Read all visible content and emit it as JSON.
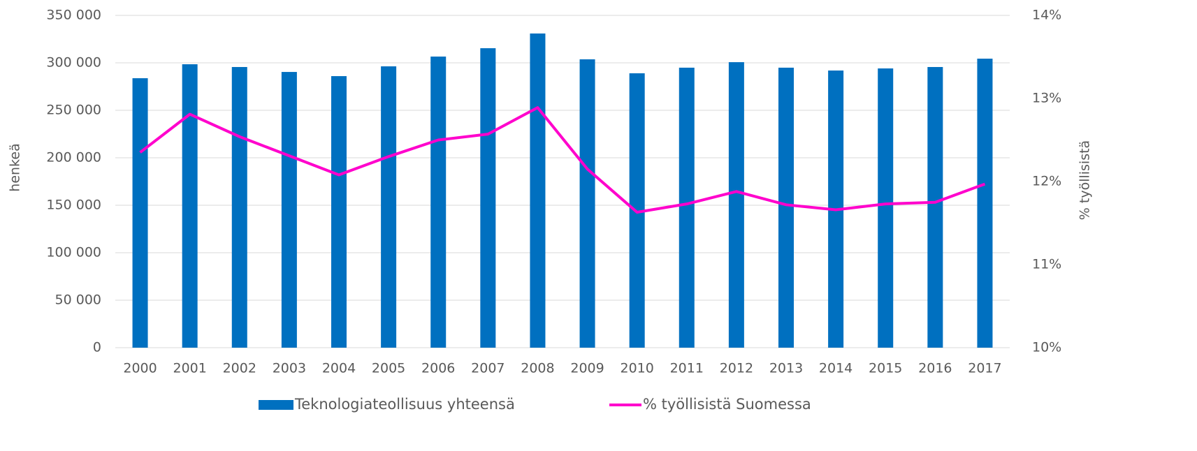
{
  "chart_data": {
    "type": "bar",
    "categories": [
      "2000",
      "2001",
      "2002",
      "2003",
      "2004",
      "2005",
      "2006",
      "2007",
      "2008",
      "2009",
      "2010",
      "2011",
      "2012",
      "2013",
      "2014",
      "2015",
      "2016",
      "2017"
    ],
    "series": [
      {
        "name": "Teknologiateollisuus yhteensä",
        "type": "bar",
        "color": "#0070c0",
        "values": [
          283800,
          298500,
          295600,
          290400,
          286000,
          296300,
          306600,
          315400,
          330900,
          303700,
          289000,
          294900,
          300700,
          294900,
          291900,
          294100,
          295600,
          304400
        ]
      },
      {
        "name": "% työllisistä Suomessa",
        "type": "line",
        "axis": "y2",
        "color": "#ff00cc",
        "values": [
          12.35,
          12.81,
          12.54,
          12.31,
          12.08,
          12.3,
          12.5,
          12.57,
          12.89,
          12.15,
          11.63,
          11.73,
          11.88,
          11.72,
          11.66,
          11.73,
          11.75,
          11.97
        ]
      }
    ],
    "ylabel": "henkeä",
    "y2label": "% työllisistä",
    "ylim": [
      0,
      350000
    ],
    "yticks": [
      0,
      {
        "value": 50000,
        "label": "50 000"
      },
      {
        "value": 100000,
        "label": "100 000"
      },
      {
        "value": 150000,
        "label": "150 000"
      },
      {
        "value": 200000,
        "label": "200 000"
      },
      {
        "value": 250000,
        "label": "250 000"
      },
      {
        "value": 300000,
        "label": "300 000"
      },
      {
        "value": 350000,
        "label": "350 000"
      }
    ],
    "y2lim": [
      10,
      14
    ],
    "y2ticks": [
      {
        "value": 10,
        "label": "10%"
      },
      {
        "value": 11,
        "label": "11%"
      },
      {
        "value": 12,
        "label": "12%"
      },
      {
        "value": 13,
        "label": "13%"
      },
      {
        "value": 14,
        "label": "14%"
      }
    ],
    "grid": true,
    "legend": "bottom"
  }
}
